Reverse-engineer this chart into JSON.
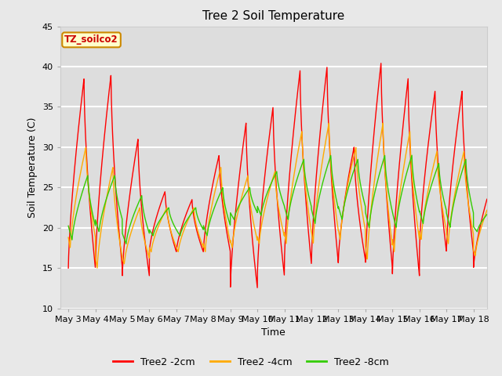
{
  "title": "Tree 2 Soil Temperature",
  "xlabel": "Time",
  "ylabel": "Soil Temperature (C)",
  "ylim": [
    10,
    45
  ],
  "xlim": [
    -0.3,
    15.5
  ],
  "x_tick_labels": [
    "May 3",
    "May 4",
    "May 5",
    "May 6",
    "May 7",
    "May 8",
    "May 9",
    "May 10",
    "May 11",
    "May 12",
    "May 13",
    "May 14",
    "May 15",
    "May 16",
    "May 17",
    "May 18"
  ],
  "x_tick_positions": [
    0,
    1,
    2,
    3,
    4,
    5,
    6,
    7,
    8,
    9,
    10,
    11,
    12,
    13,
    14,
    15
  ],
  "ytick_positions": [
    10,
    15,
    20,
    25,
    30,
    35,
    40,
    45
  ],
  "annotation_text": "TZ_soilco2",
  "annotation_bg": "#ffffcc",
  "annotation_border": "#cc8800",
  "annotation_text_color": "#cc0000",
  "fig_bg": "#e8e8e8",
  "plot_bg": "#dddddd",
  "grid_color": "#eeeeee",
  "line_2cm_color": "#ff0000",
  "line_4cm_color": "#ffaa00",
  "line_8cm_color": "#33cc00",
  "legend_labels": [
    "Tree2 -2cm",
    "Tree2 -4cm",
    "Tree2 -8cm"
  ],
  "peaks_2cm": [
    38.5,
    39.0,
    31.0,
    24.5,
    23.5,
    29.0,
    33.0,
    35.0,
    39.5,
    40.0,
    30.0,
    40.5,
    38.5,
    37.0,
    37.0,
    24.5
  ],
  "valleys_2cm": [
    15.0,
    15.0,
    14.0,
    17.0,
    17.0,
    17.0,
    12.5,
    14.0,
    15.5,
    15.5,
    16.0,
    15.0,
    14.0,
    17.0,
    17.0,
    14.8
  ],
  "peaks_4cm": [
    30.0,
    27.5,
    22.5,
    22.5,
    22.5,
    27.5,
    26.5,
    27.0,
    32.0,
    33.0,
    30.0,
    33.0,
    32.0,
    29.5,
    29.5,
    23.5
  ],
  "valleys_4cm": [
    17.5,
    15.0,
    15.5,
    17.0,
    17.0,
    17.0,
    17.5,
    18.0,
    18.0,
    18.0,
    18.5,
    16.0,
    17.0,
    18.5,
    18.0,
    16.5
  ],
  "peaks_8cm": [
    26.5,
    26.5,
    24.0,
    22.5,
    22.5,
    25.0,
    25.0,
    27.0,
    28.5,
    29.0,
    28.5,
    29.0,
    29.0,
    28.0,
    28.5,
    22.5
  ],
  "valleys_8cm": [
    18.5,
    19.5,
    18.0,
    19.0,
    19.0,
    19.0,
    21.0,
    21.5,
    21.0,
    20.5,
    21.0,
    20.0,
    20.0,
    20.5,
    20.0,
    19.5
  ],
  "peak_phase": 0.58,
  "phase_shift_4cm": 0.07,
  "phase_shift_8cm": 0.14
}
